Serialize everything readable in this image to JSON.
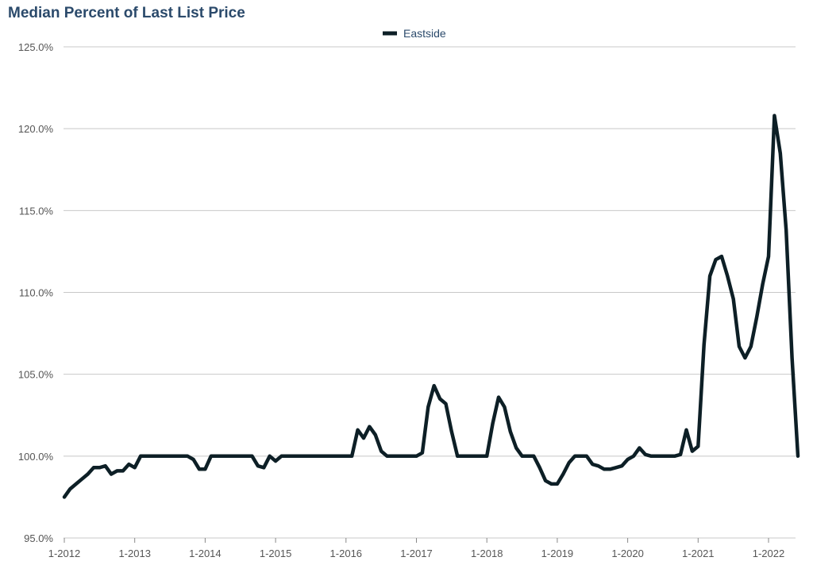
{
  "chart_data": {
    "type": "line",
    "title": "Median Percent of Last List Price",
    "xlabel": "",
    "ylabel": "",
    "ylim": [
      95,
      125
    ],
    "y_ticks": [
      "125.0%",
      "120.0%",
      "115.0%",
      "110.0%",
      "105.0%",
      "100.0%",
      "95.0%"
    ],
    "x_ticks": [
      "1-2012",
      "1-2013",
      "1-2014",
      "1-2015",
      "1-2016",
      "1-2017",
      "1-2018",
      "1-2019",
      "1-2020",
      "1-2021",
      "1-2022"
    ],
    "grid": "horizontal",
    "legend_position": "top-center",
    "series": [
      {
        "name": "Eastside",
        "color": "#0d1f26",
        "points": [
          [
            "2012-01",
            97.5
          ],
          [
            "2012-02",
            98.0
          ],
          [
            "2012-03",
            98.3
          ],
          [
            "2012-04",
            98.6
          ],
          [
            "2012-05",
            98.9
          ],
          [
            "2012-06",
            99.3
          ],
          [
            "2012-07",
            99.3
          ],
          [
            "2012-08",
            99.4
          ],
          [
            "2012-09",
            98.9
          ],
          [
            "2012-10",
            99.1
          ],
          [
            "2012-11",
            99.1
          ],
          [
            "2012-12",
            99.5
          ],
          [
            "2013-01",
            99.3
          ],
          [
            "2013-02",
            100.0
          ],
          [
            "2013-03",
            100.0
          ],
          [
            "2013-04",
            100.0
          ],
          [
            "2013-05",
            100.0
          ],
          [
            "2013-06",
            100.0
          ],
          [
            "2013-07",
            100.0
          ],
          [
            "2013-08",
            100.0
          ],
          [
            "2013-09",
            100.0
          ],
          [
            "2013-10",
            100.0
          ],
          [
            "2013-11",
            99.8
          ],
          [
            "2013-12",
            99.2
          ],
          [
            "2014-01",
            99.2
          ],
          [
            "2014-02",
            100.0
          ],
          [
            "2014-03",
            100.0
          ],
          [
            "2014-04",
            100.0
          ],
          [
            "2014-05",
            100.0
          ],
          [
            "2014-06",
            100.0
          ],
          [
            "2014-07",
            100.0
          ],
          [
            "2014-08",
            100.0
          ],
          [
            "2014-09",
            100.0
          ],
          [
            "2014-10",
            99.4
          ],
          [
            "2014-11",
            99.3
          ],
          [
            "2014-12",
            100.0
          ],
          [
            "2015-01",
            99.7
          ],
          [
            "2015-02",
            100.0
          ],
          [
            "2015-03",
            100.0
          ],
          [
            "2015-04",
            100.0
          ],
          [
            "2015-05",
            100.0
          ],
          [
            "2015-06",
            100.0
          ],
          [
            "2015-07",
            100.0
          ],
          [
            "2015-08",
            100.0
          ],
          [
            "2015-09",
            100.0
          ],
          [
            "2015-10",
            100.0
          ],
          [
            "2015-11",
            100.0
          ],
          [
            "2015-12",
            100.0
          ],
          [
            "2016-01",
            100.0
          ],
          [
            "2016-02",
            100.0
          ],
          [
            "2016-03",
            101.6
          ],
          [
            "2016-04",
            101.1
          ],
          [
            "2016-05",
            101.8
          ],
          [
            "2016-06",
            101.3
          ],
          [
            "2016-07",
            100.3
          ],
          [
            "2016-08",
            100.0
          ],
          [
            "2016-09",
            100.0
          ],
          [
            "2016-10",
            100.0
          ],
          [
            "2016-11",
            100.0
          ],
          [
            "2016-12",
            100.0
          ],
          [
            "2017-01",
            100.0
          ],
          [
            "2017-02",
            100.2
          ],
          [
            "2017-03",
            103.0
          ],
          [
            "2017-04",
            104.3
          ],
          [
            "2017-05",
            103.5
          ],
          [
            "2017-06",
            103.2
          ],
          [
            "2017-07",
            101.5
          ],
          [
            "2017-08",
            100.0
          ],
          [
            "2017-09",
            100.0
          ],
          [
            "2017-10",
            100.0
          ],
          [
            "2017-11",
            100.0
          ],
          [
            "2017-12",
            100.0
          ],
          [
            "2018-01",
            100.0
          ],
          [
            "2018-02",
            102.0
          ],
          [
            "2018-03",
            103.6
          ],
          [
            "2018-04",
            103.0
          ],
          [
            "2018-05",
            101.5
          ],
          [
            "2018-06",
            100.5
          ],
          [
            "2018-07",
            100.0
          ],
          [
            "2018-08",
            100.0
          ],
          [
            "2018-09",
            100.0
          ],
          [
            "2018-10",
            99.3
          ],
          [
            "2018-11",
            98.5
          ],
          [
            "2018-12",
            98.3
          ],
          [
            "2019-01",
            98.3
          ],
          [
            "2019-02",
            98.9
          ],
          [
            "2019-03",
            99.6
          ],
          [
            "2019-04",
            100.0
          ],
          [
            "2019-05",
            100.0
          ],
          [
            "2019-06",
            100.0
          ],
          [
            "2019-07",
            99.5
          ],
          [
            "2019-08",
            99.4
          ],
          [
            "2019-09",
            99.2
          ],
          [
            "2019-10",
            99.2
          ],
          [
            "2019-11",
            99.3
          ],
          [
            "2019-12",
            99.4
          ],
          [
            "2020-01",
            99.8
          ],
          [
            "2020-02",
            100.0
          ],
          [
            "2020-03",
            100.5
          ],
          [
            "2020-04",
            100.1
          ],
          [
            "2020-05",
            100.0
          ],
          [
            "2020-06",
            100.0
          ],
          [
            "2020-07",
            100.0
          ],
          [
            "2020-08",
            100.0
          ],
          [
            "2020-09",
            100.0
          ],
          [
            "2020-10",
            100.1
          ],
          [
            "2020-11",
            101.6
          ],
          [
            "2020-12",
            100.3
          ],
          [
            "2021-01",
            100.6
          ],
          [
            "2021-02",
            106.8
          ],
          [
            "2021-03",
            111.0
          ],
          [
            "2021-04",
            112.0
          ],
          [
            "2021-05",
            112.2
          ],
          [
            "2021-06",
            111.0
          ],
          [
            "2021-07",
            109.6
          ],
          [
            "2021-08",
            106.7
          ],
          [
            "2021-09",
            106.0
          ],
          [
            "2021-10",
            106.7
          ],
          [
            "2021-11",
            108.5
          ],
          [
            "2021-12",
            110.5
          ],
          [
            "2022-01",
            112.2
          ],
          [
            "2022-02",
            120.8
          ],
          [
            "2022-03",
            118.5
          ],
          [
            "2022-04",
            113.8
          ],
          [
            "2022-05",
            106.0
          ],
          [
            "2022-06",
            100.0
          ]
        ]
      }
    ]
  }
}
